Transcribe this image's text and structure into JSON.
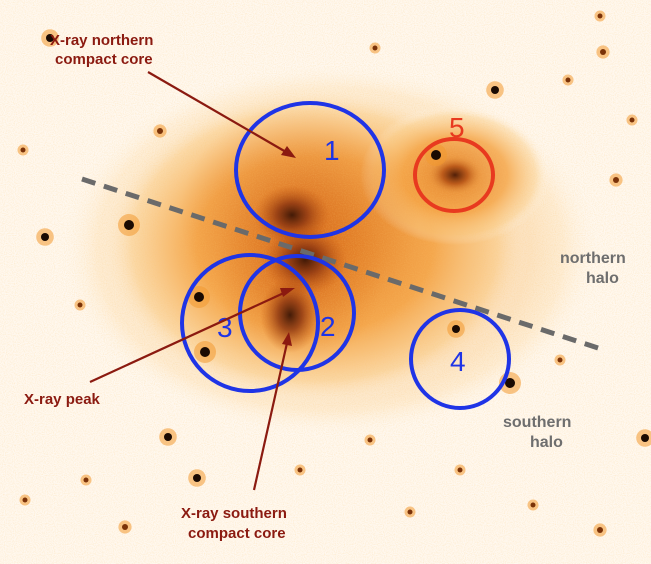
{
  "image": {
    "description_colors": {
      "background": "#ffffff",
      "emission_outer": "#f7b24a",
      "emission_core": "#c65a12",
      "emission_peak": "#3a1505",
      "point_source": "#1a0a02"
    },
    "regions": [
      {
        "label": "1",
        "color": "#1f34e6"
      },
      {
        "label": "2",
        "color": "#1f34e6"
      },
      {
        "label": "3",
        "color": "#1f34e6"
      },
      {
        "label": "4",
        "color": "#1f34e6"
      },
      {
        "label": "5",
        "color": "#e83a1f"
      }
    ],
    "annotations": {
      "northern_core": [
        "X-ray northern",
        "compact core"
      ],
      "peak": "X-ray peak",
      "southern_core": [
        "X-ray southern",
        "compact core"
      ],
      "northern_halo": [
        "northern",
        "halo"
      ],
      "southern_halo": [
        "southern",
        "halo"
      ]
    },
    "annotation_color": "#8b1a10",
    "halo_label_color": "#6e6e6e",
    "divider_color": "#6a6a6a"
  }
}
